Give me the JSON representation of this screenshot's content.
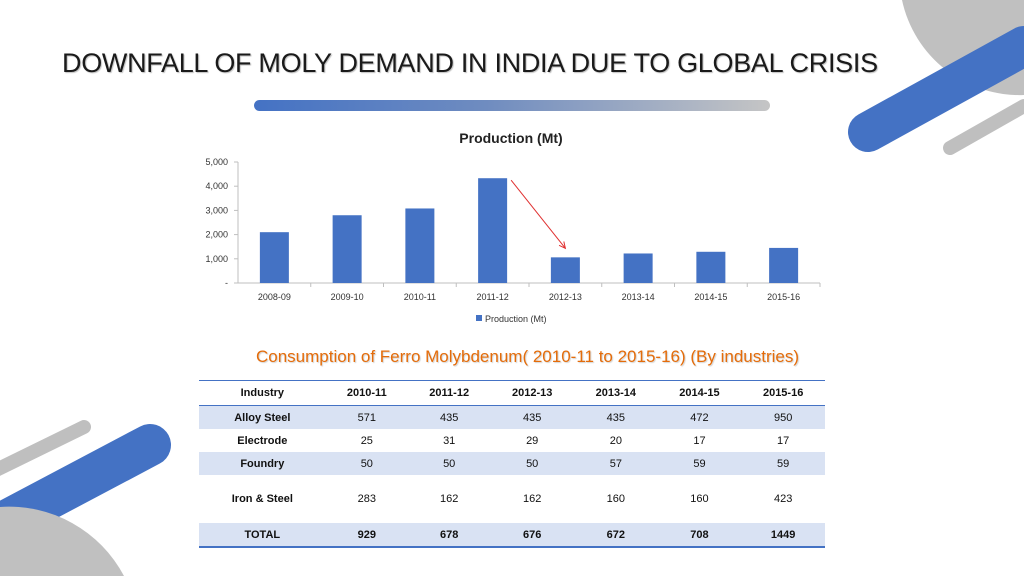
{
  "page": {
    "title": "DOWNFALL OF MOLY DEMAND IN INDIA DUE TO GLOBAL CRISIS",
    "table_title": "Consumption of Ferro Molybdenum( 2010-11 to 2015-16) (By industries)"
  },
  "colors": {
    "accent_blue": "#4472c4",
    "orange": "#e46c0a",
    "shade": "#d9e2f3",
    "gray": "#bfbfbf",
    "arrow": "#e03030"
  },
  "chart_data": {
    "type": "bar",
    "title": "Production (Mt)",
    "categories": [
      "2008-09",
      "2009-10",
      "2010-11",
      "2011-12",
      "2012-13",
      "2013-14",
      "2014-15",
      "2015-16"
    ],
    "series": [
      {
        "name": "Production (Mt)",
        "values": [
          2100,
          2800,
          3080,
          4330,
          1060,
          1220,
          1290,
          1450
        ]
      }
    ],
    "ylim": [
      0,
      5000
    ],
    "yticks": [
      0,
      1000,
      2000,
      3000,
      4000,
      5000
    ],
    "ytick_labels": [
      "-",
      "1,000",
      "2,000",
      "3,000",
      "4,000",
      "5,000"
    ],
    "legend_position": "bottom",
    "annotation": {
      "type": "arrow",
      "from_category": "2011-12",
      "to_category": "2012-13"
    }
  },
  "table": {
    "headers": [
      "Industry",
      "2010-11",
      "2011-12",
      "2012-13",
      "2013-14",
      "2014-15",
      "2015-16"
    ],
    "rows": [
      [
        "Alloy Steel",
        "571",
        "435",
        "435",
        "435",
        "472",
        "950"
      ],
      [
        "Electrode",
        "25",
        "31",
        "29",
        "20",
        "17",
        "17"
      ],
      [
        "Foundry",
        "50",
        "50",
        "50",
        "57",
        "59",
        "59"
      ],
      [
        "Iron & Steel",
        "283",
        "162",
        "162",
        "160",
        "160",
        "423"
      ],
      [
        "TOTAL",
        "929",
        "678",
        "676",
        "672",
        "708",
        "1449"
      ]
    ]
  }
}
